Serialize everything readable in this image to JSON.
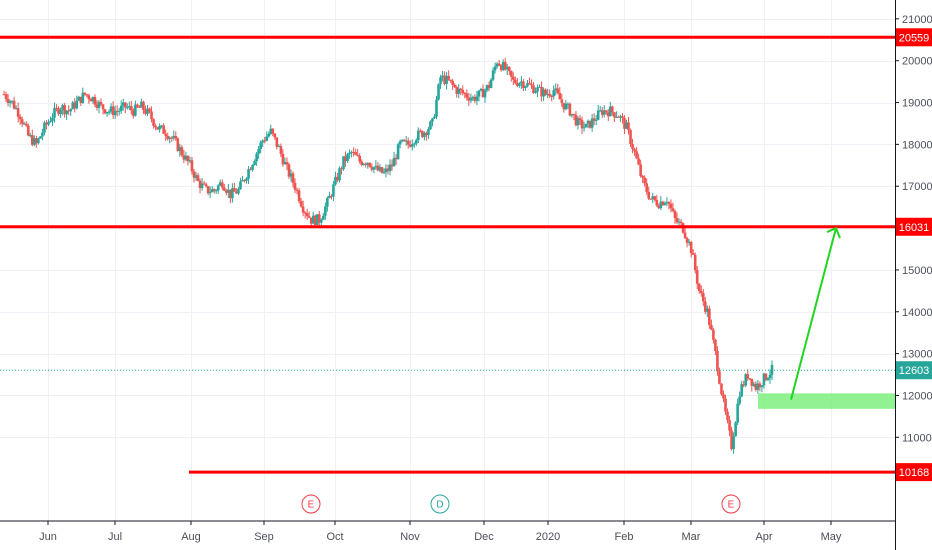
{
  "chart_data": {
    "type": "candlestick",
    "y_axis": {
      "ticks": [
        "21000",
        "20000",
        "19000",
        "18000",
        "17000",
        "16000",
        "15000",
        "14000",
        "13000",
        "12000",
        "11000"
      ],
      "range": [
        9000,
        21450
      ],
      "position": "right"
    },
    "x_axis": {
      "labels": [
        "Jun",
        "Jul",
        "Aug",
        "Sep",
        "Oct",
        "Nov",
        "Dec",
        "2020",
        "Feb",
        "Mar",
        "Apr",
        "May"
      ]
    },
    "levels": [
      {
        "value": 20559,
        "label": "20559",
        "color": "#ff0000",
        "extent": "full"
      },
      {
        "value": 16031,
        "label": "16031",
        "color": "#ff0000",
        "extent": "full"
      },
      {
        "value": 10168,
        "label": "10168",
        "color": "#ff0000",
        "extent": "from-aug"
      }
    ],
    "last_price": {
      "value": 12603,
      "label": "12603",
      "color": "#26a69a"
    },
    "support_zone": {
      "top": 12050,
      "bottom": 11680,
      "color": "#7df07d"
    },
    "projection": {
      "from": 11900,
      "to": 16000,
      "color": "#22d322"
    },
    "events": [
      {
        "letter": "E",
        "color": "#f23645"
      },
      {
        "letter": "D",
        "color": "#26a69a"
      },
      {
        "letter": "E",
        "color": "#f23645"
      }
    ],
    "series": [
      {
        "values": [
          19200,
          19000,
          18700,
          18200,
          18000,
          18400,
          18700,
          18900,
          18800,
          19000,
          19200,
          19100,
          18900,
          18800,
          18800,
          18900,
          18800,
          18900,
          18700,
          18400,
          18300,
          18100,
          17800,
          17500,
          17100,
          16900,
          16900,
          17100,
          16800,
          16900,
          17300,
          17700,
          18100,
          18300,
          17900,
          17400,
          17000,
          16500,
          16200,
          16200,
          16600,
          17100,
          17600,
          17800,
          17600,
          17600,
          17400,
          17300,
          17500,
          18000,
          18000,
          18200,
          18300,
          18500,
          19600,
          19500,
          19300,
          19200,
          19100,
          19200,
          19400,
          20000,
          19800,
          19500,
          19500,
          19400,
          19300,
          19200,
          19300,
          19000,
          18800,
          18500,
          18400,
          18600,
          18800,
          18800,
          18700,
          18400,
          17800,
          17100,
          16700,
          16600,
          16700,
          16200,
          16000,
          15500,
          14500,
          14000,
          13000,
          11800,
          10800,
          12100,
          12500,
          12200,
          12400,
          12603
        ]
      }
    ],
    "up_color": "#26a69a",
    "down_color": "#ef5350",
    "grid": true
  }
}
